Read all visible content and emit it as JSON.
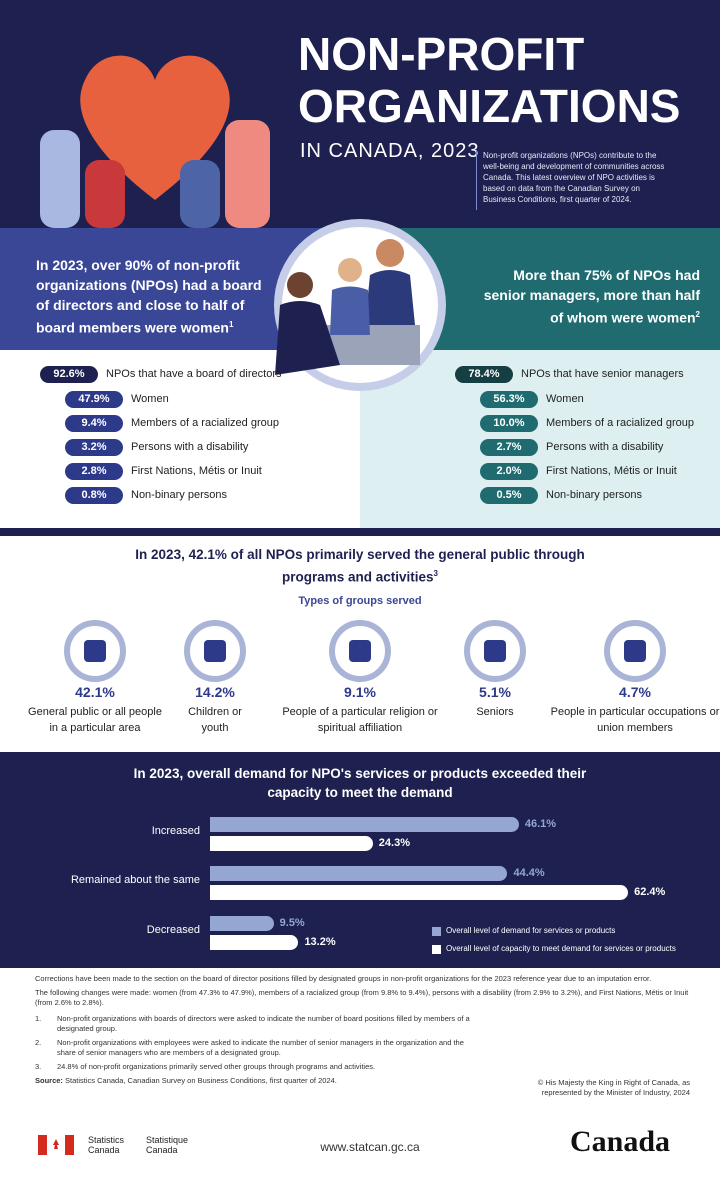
{
  "header": {
    "title_line1": "NON-PROFIT",
    "title_line2": "ORGANIZATIONS",
    "subtitle": "IN CANADA, 2023",
    "intro": "Non-profit organizations (NPOs) contribute to the well-being and development of communities across Canada. This latest overview of NPO activities is based on data from the Canadian Survey on Business Conditions, first quarter of 2024."
  },
  "board": {
    "headline": "In 2023, over 90% of non-profit organizations (NPOs) had a board of directors and close to half of board members were women",
    "note_ref": "1",
    "items": [
      {
        "value_label": "92.6%",
        "label": "NPOs that have a board of directors"
      },
      {
        "value_label": "47.9%",
        "label": "Women"
      },
      {
        "value_label": "9.4%",
        "label": "Members of a racialized group"
      },
      {
        "value_label": "3.2%",
        "label": "Persons with a disability"
      },
      {
        "value_label": "2.8%",
        "label": "First Nations, Métis or Inuit"
      },
      {
        "value_label": "0.8%",
        "label": "Non-binary persons"
      }
    ]
  },
  "managers": {
    "headline": "More than 75% of NPOs had senior managers, more than half of whom were women",
    "note_ref": "2",
    "items": [
      {
        "value_label": "78.4%",
        "label": "NPOs that have senior managers"
      },
      {
        "value_label": "56.3%",
        "label": "Women"
      },
      {
        "value_label": "10.0%",
        "label": "Members of a racialized group"
      },
      {
        "value_label": "2.7%",
        "label": "Persons with a disability"
      },
      {
        "value_label": "2.0%",
        "label": "First Nations, Métis or Inuit"
      },
      {
        "value_label": "0.5%",
        "label": "Non-binary persons"
      }
    ]
  },
  "groups": {
    "headline": "In 2023, 42.1% of all NPOs primarily served the general public through programs and activities",
    "note_ref": "3",
    "subheading": "Types of groups served",
    "items": [
      {
        "value_label": "42.1%",
        "label": "General public or all people in a particular area"
      },
      {
        "value_label": "14.2%",
        "label": "Children or youth"
      },
      {
        "value_label": "9.1%",
        "label": "People of a particular religion or spiritual affiliation"
      },
      {
        "value_label": "5.1%",
        "label": "Seniors"
      },
      {
        "value_label": "4.7%",
        "label": "People in particular occupations or union members"
      }
    ]
  },
  "demand": {
    "headline": "In 2023, overall demand for NPO's services or products exceeded their capacity to meet the demand",
    "categories": [
      "Increased",
      "Remained about the same",
      "Decreased"
    ],
    "series": [
      {
        "name": "Overall level of demand for services or products",
        "color": "#94a6d1",
        "values": [
          46.1,
          44.4,
          9.5
        ],
        "value_labels": [
          "46.1%",
          "44.4%",
          "9.5%"
        ]
      },
      {
        "name": "Overall level of capacity to meet demand for services or products",
        "color": "#ffffff",
        "values": [
          24.3,
          62.4,
          13.2
        ],
        "value_labels": [
          "24.3%",
          "62.4%",
          "13.2%"
        ]
      }
    ]
  },
  "footer": {
    "correction": "Corrections have been made to the section on the board of director positions filled by designated groups in non-profit organizations for the 2023 reference year due to an imputation error.",
    "changes": "The following changes were made: women (from 47.3% to 47.9%), members of a racialized group (from 9.8% to 9.4%), persons with a disability (from 2.9% to 3.2%), and First Nations, Métis or Inuit (from 2.6% to 2.8%).",
    "notes": [
      {
        "number": "1.",
        "text": "Non-profit organizations with boards of directors were asked to indicate the number of board positions filled by members of a designated group."
      },
      {
        "number": "2.",
        "text": "Non-profit organizations with employees were asked to indicate the number of senior managers in the organization and the share of senior managers who are members of a designated group."
      },
      {
        "number": "3.",
        "text": "24.8% of non-profit organizations primarily served other groups through programs and activities."
      }
    ],
    "source_label": "Source:",
    "source": "Statistics Canada, Canadian Survey on Business Conditions, first quarter of 2024.",
    "copyright": "© His Majesty the King in Right of Canada, as represented by the Minister of Industry, 2024",
    "agency_en": "Statistics Canada",
    "agency_fr": "Statistique Canada",
    "website": "www.statcan.gc.ca",
    "wordmark": "Canada"
  }
}
